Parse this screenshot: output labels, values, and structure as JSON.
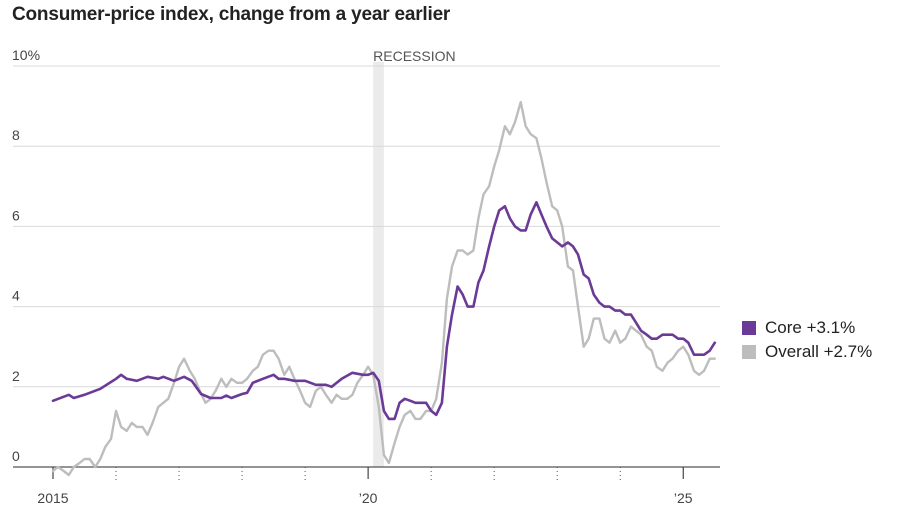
{
  "title": "Consumer-price index, change from a year earlier",
  "chart_data": {
    "type": "line",
    "title": "Consumer-price index, change from a year earlier",
    "xlabel": "",
    "ylabel": "",
    "xlim": [
      2015.0,
      2025.583
    ],
    "ylim": [
      0,
      10
    ],
    "y_ticks": [
      {
        "value": 0,
        "label": "0"
      },
      {
        "value": 2,
        "label": "2"
      },
      {
        "value": 4,
        "label": "4"
      },
      {
        "value": 6,
        "label": "6"
      },
      {
        "value": 8,
        "label": "8"
      },
      {
        "value": 10,
        "label": "10%"
      }
    ],
    "x_ticks": [
      {
        "value": 2015,
        "label": "2015"
      },
      {
        "value": 2020,
        "label": "’20"
      },
      {
        "value": 2025,
        "label": "’25"
      }
    ],
    "x_minor_ticks": [
      2016,
      2017,
      2018,
      2019,
      2021,
      2022,
      2023,
      2024
    ],
    "annotations": [
      {
        "type": "shaded_band",
        "label": "RECESSION",
        "x_start": 2020.08,
        "x_end": 2020.25
      }
    ],
    "legend": {
      "placement": "right"
    },
    "series": [
      {
        "name": "Core",
        "legend_label": "Core +3.1%",
        "color": "#6b3a96",
        "points": [
          [
            2015.0,
            1.65
          ],
          [
            2015.25,
            1.8
          ],
          [
            2015.33,
            1.72
          ],
          [
            2015.5,
            1.8
          ],
          [
            2015.75,
            1.95
          ],
          [
            2016.0,
            2.2
          ],
          [
            2016.08,
            2.3
          ],
          [
            2016.17,
            2.2
          ],
          [
            2016.33,
            2.15
          ],
          [
            2016.5,
            2.25
          ],
          [
            2016.67,
            2.2
          ],
          [
            2016.75,
            2.25
          ],
          [
            2016.92,
            2.15
          ],
          [
            2017.0,
            2.2
          ],
          [
            2017.08,
            2.25
          ],
          [
            2017.2,
            2.15
          ],
          [
            2017.35,
            1.82
          ],
          [
            2017.5,
            1.72
          ],
          [
            2017.67,
            1.72
          ],
          [
            2017.75,
            1.78
          ],
          [
            2017.83,
            1.72
          ],
          [
            2018.0,
            1.82
          ],
          [
            2018.08,
            1.85
          ],
          [
            2018.17,
            2.1
          ],
          [
            2018.33,
            2.2
          ],
          [
            2018.5,
            2.3
          ],
          [
            2018.58,
            2.2
          ],
          [
            2018.67,
            2.2
          ],
          [
            2018.83,
            2.15
          ],
          [
            2019.0,
            2.15
          ],
          [
            2019.17,
            2.05
          ],
          [
            2019.33,
            2.05
          ],
          [
            2019.42,
            2.0
          ],
          [
            2019.58,
            2.2
          ],
          [
            2019.75,
            2.35
          ],
          [
            2019.92,
            2.3
          ],
          [
            2020.0,
            2.3
          ],
          [
            2020.08,
            2.35
          ],
          [
            2020.17,
            2.15
          ],
          [
            2020.25,
            1.4
          ],
          [
            2020.33,
            1.2
          ],
          [
            2020.42,
            1.2
          ],
          [
            2020.5,
            1.6
          ],
          [
            2020.58,
            1.7
          ],
          [
            2020.67,
            1.65
          ],
          [
            2020.75,
            1.6
          ],
          [
            2020.83,
            1.6
          ],
          [
            2020.92,
            1.6
          ],
          [
            2021.0,
            1.4
          ],
          [
            2021.08,
            1.3
          ],
          [
            2021.17,
            1.6
          ],
          [
            2021.25,
            3.0
          ],
          [
            2021.33,
            3.8
          ],
          [
            2021.42,
            4.5
          ],
          [
            2021.5,
            4.3
          ],
          [
            2021.58,
            4.0
          ],
          [
            2021.67,
            4.0
          ],
          [
            2021.75,
            4.6
          ],
          [
            2021.83,
            4.9
          ],
          [
            2021.92,
            5.5
          ],
          [
            2022.0,
            6.0
          ],
          [
            2022.08,
            6.4
          ],
          [
            2022.17,
            6.5
          ],
          [
            2022.25,
            6.2
          ],
          [
            2022.33,
            6.0
          ],
          [
            2022.42,
            5.9
          ],
          [
            2022.5,
            5.9
          ],
          [
            2022.58,
            6.3
          ],
          [
            2022.67,
            6.6
          ],
          [
            2022.75,
            6.3
          ],
          [
            2022.83,
            6.0
          ],
          [
            2022.92,
            5.7
          ],
          [
            2023.0,
            5.6
          ],
          [
            2023.08,
            5.5
          ],
          [
            2023.17,
            5.6
          ],
          [
            2023.25,
            5.5
          ],
          [
            2023.33,
            5.3
          ],
          [
            2023.42,
            4.8
          ],
          [
            2023.5,
            4.7
          ],
          [
            2023.58,
            4.3
          ],
          [
            2023.67,
            4.1
          ],
          [
            2023.75,
            4.0
          ],
          [
            2023.83,
            4.0
          ],
          [
            2023.92,
            3.9
          ],
          [
            2024.0,
            3.9
          ],
          [
            2024.08,
            3.8
          ],
          [
            2024.17,
            3.8
          ],
          [
            2024.25,
            3.6
          ],
          [
            2024.33,
            3.4
          ],
          [
            2024.42,
            3.3
          ],
          [
            2024.5,
            3.2
          ],
          [
            2024.58,
            3.2
          ],
          [
            2024.67,
            3.3
          ],
          [
            2024.75,
            3.3
          ],
          [
            2024.83,
            3.3
          ],
          [
            2024.92,
            3.2
          ],
          [
            2025.0,
            3.2
          ],
          [
            2025.08,
            3.1
          ],
          [
            2025.17,
            2.8
          ],
          [
            2025.25,
            2.8
          ],
          [
            2025.33,
            2.8
          ],
          [
            2025.42,
            2.9
          ],
          [
            2025.5,
            3.1
          ]
        ]
      },
      {
        "name": "Overall",
        "legend_label": "Overall +2.7%",
        "color": "#bdbdbd",
        "points": [
          [
            2015.0,
            -0.1
          ],
          [
            2015.08,
            0.0
          ],
          [
            2015.17,
            -0.1
          ],
          [
            2015.25,
            -0.2
          ],
          [
            2015.33,
            0.0
          ],
          [
            2015.42,
            0.1
          ],
          [
            2015.5,
            0.2
          ],
          [
            2015.58,
            0.2
          ],
          [
            2015.67,
            0.0
          ],
          [
            2015.75,
            0.2
          ],
          [
            2015.83,
            0.5
          ],
          [
            2015.92,
            0.7
          ],
          [
            2016.0,
            1.4
          ],
          [
            2016.08,
            1.0
          ],
          [
            2016.17,
            0.9
          ],
          [
            2016.25,
            1.1
          ],
          [
            2016.33,
            1.0
          ],
          [
            2016.42,
            1.0
          ],
          [
            2016.5,
            0.8
          ],
          [
            2016.58,
            1.1
          ],
          [
            2016.67,
            1.5
          ],
          [
            2016.75,
            1.6
          ],
          [
            2016.83,
            1.7
          ],
          [
            2016.92,
            2.1
          ],
          [
            2017.0,
            2.5
          ],
          [
            2017.08,
            2.7
          ],
          [
            2017.17,
            2.4
          ],
          [
            2017.25,
            2.2
          ],
          [
            2017.33,
            1.9
          ],
          [
            2017.42,
            1.6
          ],
          [
            2017.5,
            1.7
          ],
          [
            2017.58,
            1.9
          ],
          [
            2017.67,
            2.2
          ],
          [
            2017.75,
            2.0
          ],
          [
            2017.83,
            2.2
          ],
          [
            2017.92,
            2.1
          ],
          [
            2018.0,
            2.1
          ],
          [
            2018.08,
            2.2
          ],
          [
            2018.17,
            2.4
          ],
          [
            2018.25,
            2.5
          ],
          [
            2018.33,
            2.8
          ],
          [
            2018.42,
            2.9
          ],
          [
            2018.5,
            2.9
          ],
          [
            2018.58,
            2.7
          ],
          [
            2018.67,
            2.3
          ],
          [
            2018.75,
            2.5
          ],
          [
            2018.83,
            2.2
          ],
          [
            2018.92,
            1.9
          ],
          [
            2019.0,
            1.6
          ],
          [
            2019.08,
            1.5
          ],
          [
            2019.17,
            1.9
          ],
          [
            2019.25,
            2.0
          ],
          [
            2019.33,
            1.8
          ],
          [
            2019.42,
            1.6
          ],
          [
            2019.5,
            1.8
          ],
          [
            2019.58,
            1.7
          ],
          [
            2019.67,
            1.7
          ],
          [
            2019.75,
            1.8
          ],
          [
            2019.83,
            2.1
          ],
          [
            2019.92,
            2.3
          ],
          [
            2020.0,
            2.5
          ],
          [
            2020.08,
            2.3
          ],
          [
            2020.17,
            1.5
          ],
          [
            2020.25,
            0.3
          ],
          [
            2020.33,
            0.1
          ],
          [
            2020.42,
            0.6
          ],
          [
            2020.5,
            1.0
          ],
          [
            2020.58,
            1.3
          ],
          [
            2020.67,
            1.4
          ],
          [
            2020.75,
            1.2
          ],
          [
            2020.83,
            1.2
          ],
          [
            2020.92,
            1.4
          ],
          [
            2021.0,
            1.4
          ],
          [
            2021.08,
            1.7
          ],
          [
            2021.17,
            2.6
          ],
          [
            2021.25,
            4.2
          ],
          [
            2021.33,
            5.0
          ],
          [
            2021.42,
            5.4
          ],
          [
            2021.5,
            5.4
          ],
          [
            2021.58,
            5.3
          ],
          [
            2021.67,
            5.4
          ],
          [
            2021.75,
            6.2
          ],
          [
            2021.83,
            6.8
          ],
          [
            2021.92,
            7.0
          ],
          [
            2022.0,
            7.5
          ],
          [
            2022.08,
            7.9
          ],
          [
            2022.17,
            8.5
          ],
          [
            2022.25,
            8.3
          ],
          [
            2022.33,
            8.6
          ],
          [
            2022.42,
            9.1
          ],
          [
            2022.5,
            8.5
          ],
          [
            2022.58,
            8.3
          ],
          [
            2022.67,
            8.2
          ],
          [
            2022.75,
            7.7
          ],
          [
            2022.83,
            7.1
          ],
          [
            2022.92,
            6.5
          ],
          [
            2023.0,
            6.4
          ],
          [
            2023.08,
            6.0
          ],
          [
            2023.17,
            5.0
          ],
          [
            2023.25,
            4.9
          ],
          [
            2023.33,
            4.0
          ],
          [
            2023.42,
            3.0
          ],
          [
            2023.5,
            3.2
          ],
          [
            2023.58,
            3.7
          ],
          [
            2023.67,
            3.7
          ],
          [
            2023.75,
            3.2
          ],
          [
            2023.83,
            3.1
          ],
          [
            2023.92,
            3.4
          ],
          [
            2024.0,
            3.1
          ],
          [
            2024.08,
            3.2
          ],
          [
            2024.17,
            3.5
          ],
          [
            2024.25,
            3.4
          ],
          [
            2024.33,
            3.3
          ],
          [
            2024.42,
            3.0
          ],
          [
            2024.5,
            2.9
          ],
          [
            2024.58,
            2.5
          ],
          [
            2024.67,
            2.4
          ],
          [
            2024.75,
            2.6
          ],
          [
            2024.83,
            2.7
          ],
          [
            2024.92,
            2.9
          ],
          [
            2025.0,
            3.0
          ],
          [
            2025.08,
            2.8
          ],
          [
            2025.17,
            2.4
          ],
          [
            2025.25,
            2.3
          ],
          [
            2025.33,
            2.4
          ],
          [
            2025.42,
            2.7
          ],
          [
            2025.5,
            2.7
          ]
        ]
      }
    ]
  }
}
